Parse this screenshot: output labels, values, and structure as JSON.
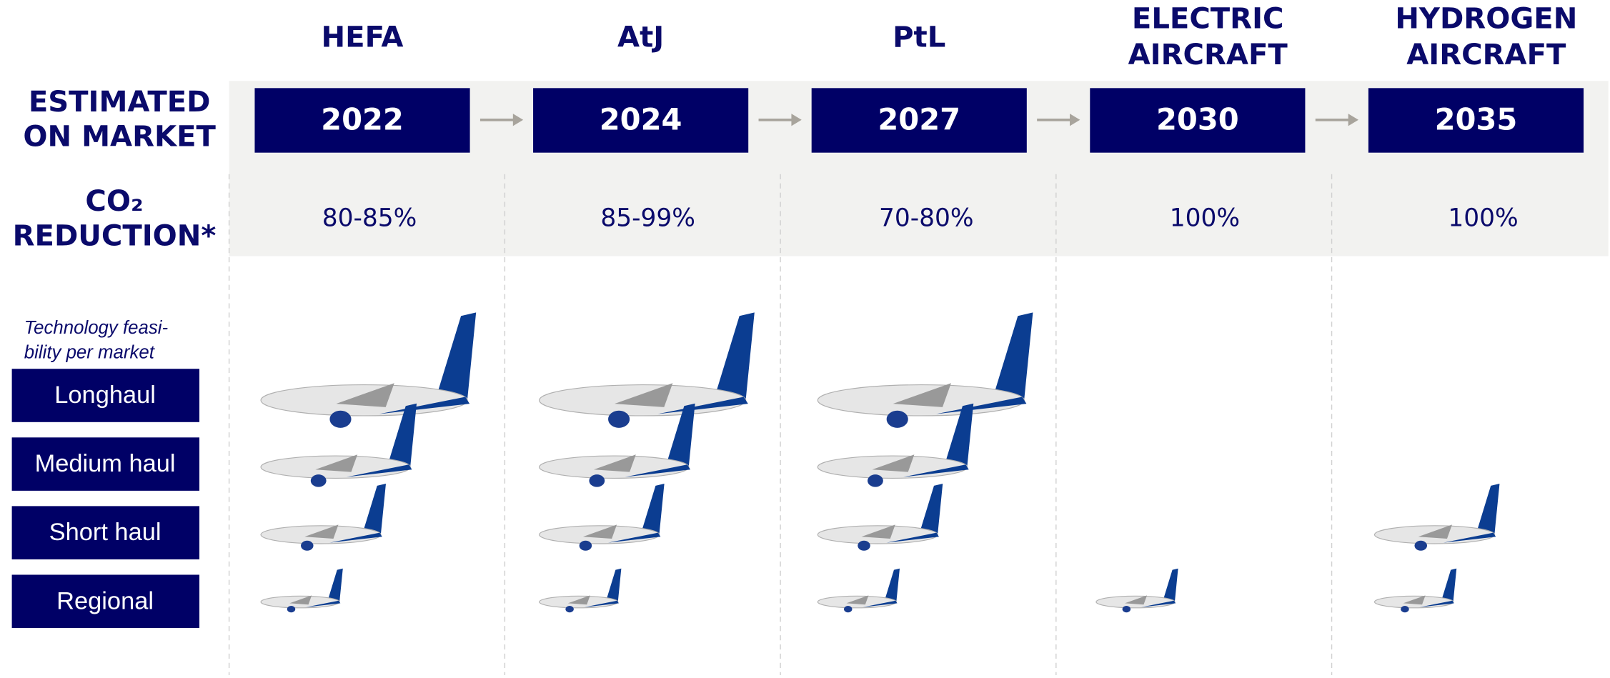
{
  "row_labels": {
    "market": [
      "ESTIMATED",
      "ON MARKET"
    ],
    "reduction": [
      "CO₂",
      "REDUCTION*"
    ],
    "note": [
      "Technology feasi-",
      "bility per market"
    ]
  },
  "markets": [
    "Longhaul",
    "Medium haul",
    "Short haul",
    "Regional"
  ],
  "technologies": [
    {
      "name": [
        "HEFA"
      ],
      "year": "2022",
      "reduction": "80-85%",
      "feasible": [
        true,
        true,
        true,
        true
      ]
    },
    {
      "name": [
        "AtJ"
      ],
      "year": "2024",
      "reduction": "85-99%",
      "feasible": [
        true,
        true,
        true,
        true
      ]
    },
    {
      "name": [
        "PtL"
      ],
      "year": "2027",
      "reduction": "70-80%",
      "feasible": [
        true,
        true,
        true,
        true
      ]
    },
    {
      "name": [
        "ELECTRIC",
        "AIRCRAFT"
      ],
      "year": "2030",
      "reduction": "100%",
      "feasible": [
        false,
        false,
        false,
        true
      ]
    },
    {
      "name": [
        "HYDROGEN",
        "AIRCRAFT"
      ],
      "year": "2035",
      "reduction": "100%",
      "feasible": [
        false,
        false,
        true,
        true
      ]
    }
  ]
}
